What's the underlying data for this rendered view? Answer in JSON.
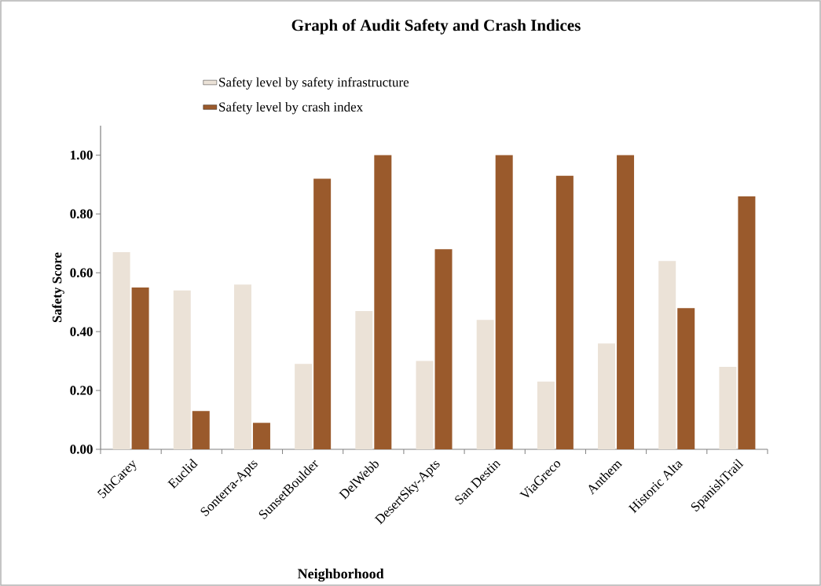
{
  "chart_data": {
    "type": "bar",
    "title": "Graph of Audit Safety and Crash Indices",
    "xlabel": "Neighborhood",
    "ylabel": "Safety Score",
    "categories": [
      "5thCarey",
      "Euclid",
      "Sonterra-Apts",
      "SunsetBoulder",
      "DelWebb",
      "DesertSky-Apts",
      "San Destin",
      "ViaGreco",
      "Anthem",
      "Historic Alta",
      "SpanishTrail"
    ],
    "series": [
      {
        "name": "Safety level by safety infrastructure",
        "color": "#ebe2d7",
        "values": [
          0.67,
          0.54,
          0.56,
          0.29,
          0.47,
          0.3,
          0.44,
          0.23,
          0.36,
          0.64,
          0.28
        ]
      },
      {
        "name": "Safety level by crash index",
        "color": "#9a5a2c",
        "values": [
          0.55,
          0.13,
          0.09,
          0.92,
          1.0,
          0.68,
          1.0,
          0.93,
          1.0,
          0.48,
          0.86
        ]
      }
    ],
    "ylim": [
      0,
      1.1
    ],
    "yticks": [
      {
        "value": 0,
        "label": "0.00"
      },
      {
        "value": 0.2,
        "label": "0.20"
      },
      {
        "value": 0.4,
        "label": "0.40"
      },
      {
        "value": 0.6,
        "label": "0.60"
      },
      {
        "value": 0.8,
        "label": "0.80"
      },
      {
        "value": 1.0,
        "label": "1.00"
      }
    ],
    "grid": false,
    "legend": "top left"
  }
}
